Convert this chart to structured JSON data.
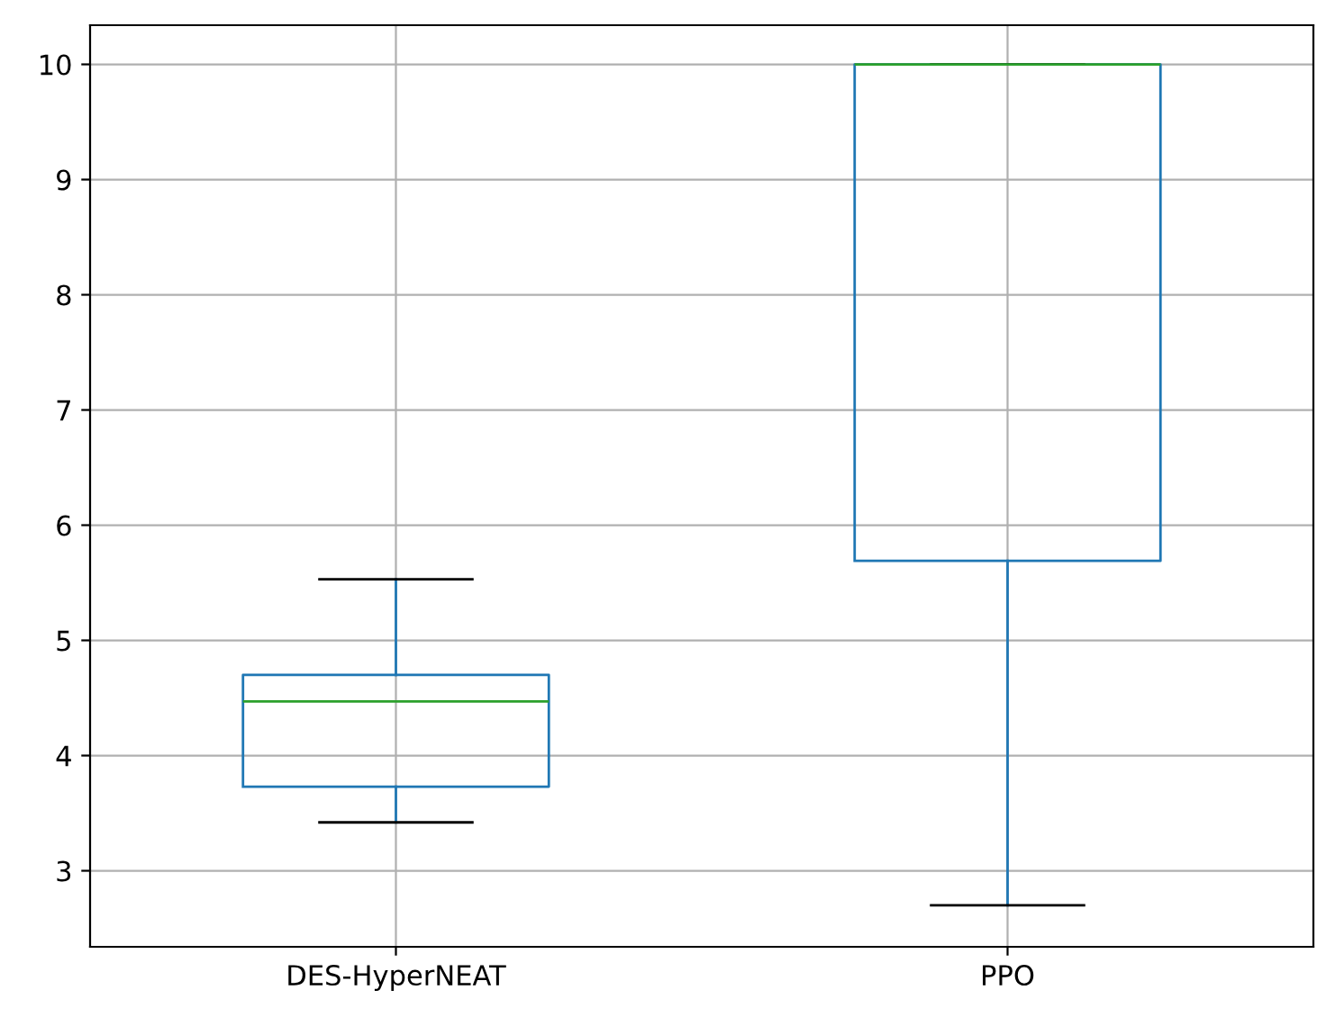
{
  "chart_data": {
    "type": "box",
    "categories": [
      "DES-HyperNEAT",
      "PPO"
    ],
    "boxes": [
      {
        "low": 3.42,
        "q1": 3.73,
        "median": 4.47,
        "q3": 4.7,
        "high": 5.53
      },
      {
        "low": 2.7,
        "q1": 5.69,
        "median": 10.0,
        "q3": 10.0,
        "high": 10.0
      }
    ],
    "color": "#1f77b4",
    "ylim": [
      2.34,
      10.34
    ],
    "yticks": [
      3,
      4,
      5,
      6,
      7,
      8,
      9,
      10
    ],
    "grid": true
  }
}
